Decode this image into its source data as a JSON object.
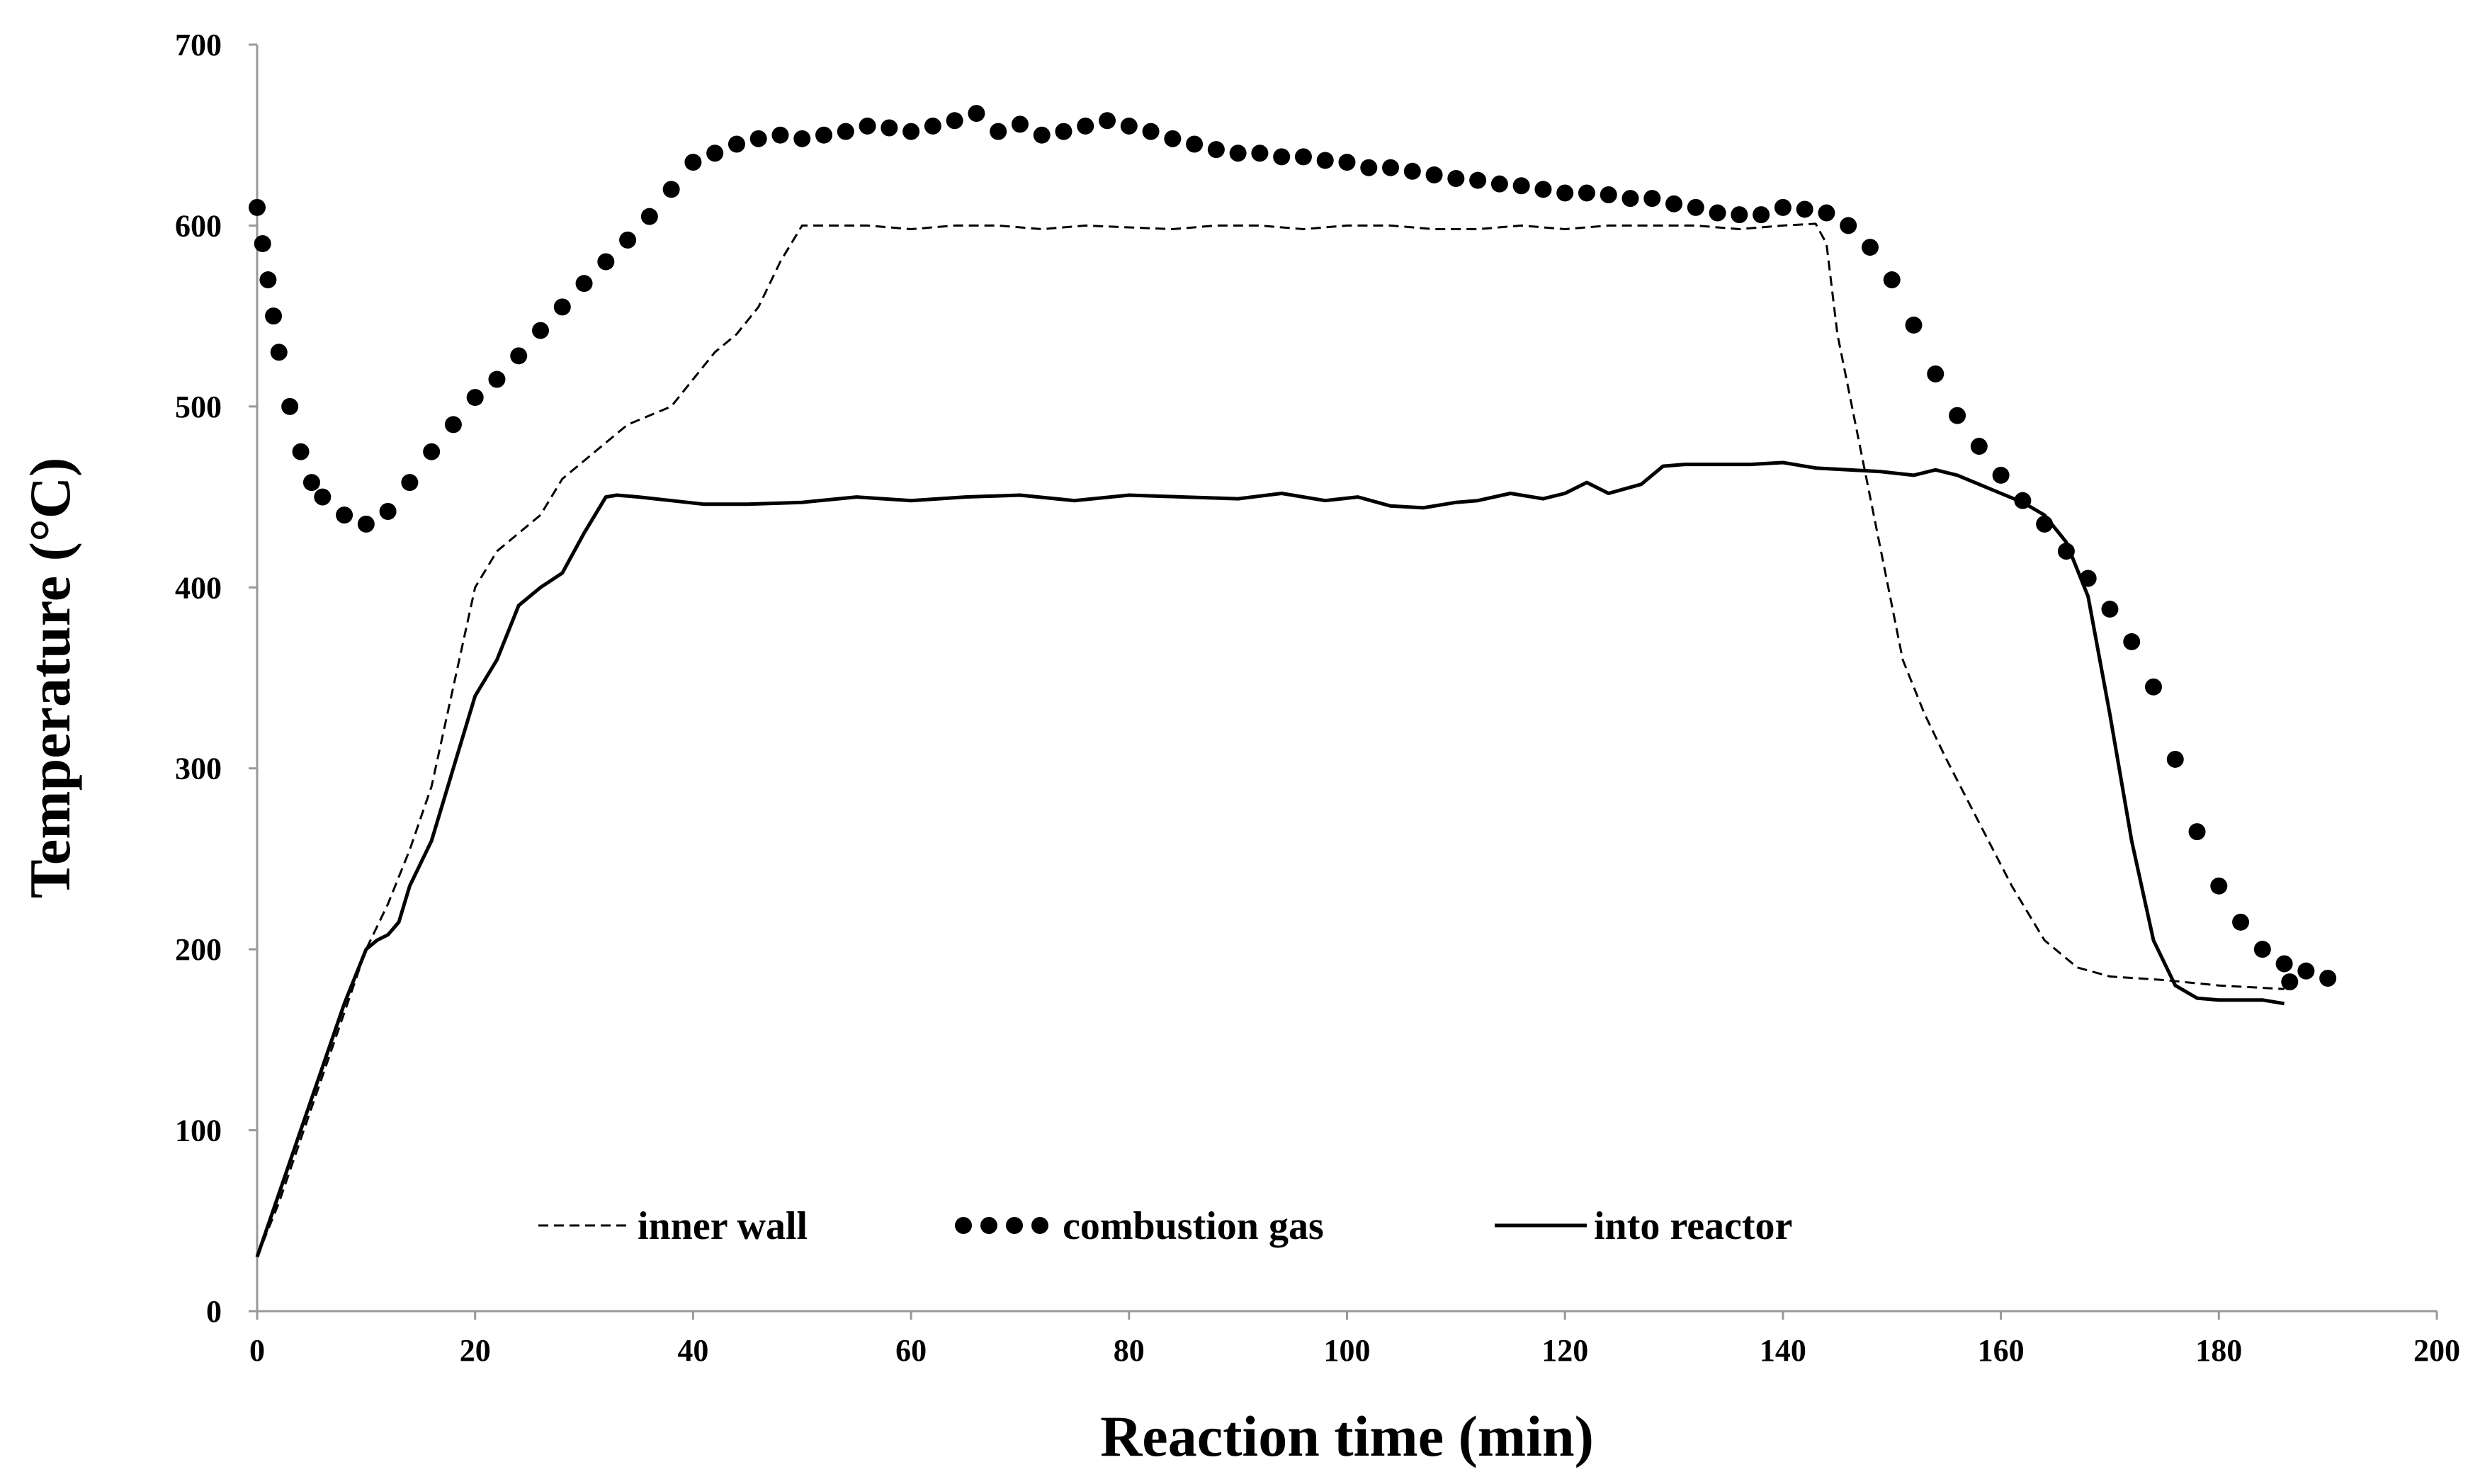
{
  "chart_data": {
    "type": "line",
    "title": "",
    "xlabel": "Reaction time (min)",
    "ylabel": "Temperature (°C)",
    "xlim": [
      0,
      200
    ],
    "ylim": [
      0,
      700
    ],
    "xticks": [
      0,
      20,
      40,
      60,
      80,
      100,
      120,
      140,
      160,
      180,
      200
    ],
    "yticks": [
      0,
      100,
      200,
      300,
      400,
      500,
      600,
      700
    ],
    "grid": false,
    "legend_position": "bottom-inside",
    "series": [
      {
        "name": "inner wall",
        "style": "dashed",
        "color": "#000000",
        "points": [
          [
            0,
            30
          ],
          [
            2,
            60
          ],
          [
            4,
            95
          ],
          [
            6,
            130
          ],
          [
            8,
            165
          ],
          [
            10,
            200
          ],
          [
            12,
            225
          ],
          [
            14,
            255
          ],
          [
            16,
            290
          ],
          [
            18,
            345
          ],
          [
            20,
            400
          ],
          [
            22,
            420
          ],
          [
            24,
            430
          ],
          [
            26,
            440
          ],
          [
            28,
            460
          ],
          [
            30,
            470
          ],
          [
            32,
            480
          ],
          [
            34,
            490
          ],
          [
            36,
            495
          ],
          [
            38,
            500
          ],
          [
            40,
            515
          ],
          [
            42,
            530
          ],
          [
            44,
            540
          ],
          [
            46,
            555
          ],
          [
            48,
            580
          ],
          [
            50,
            600
          ],
          [
            52,
            600
          ],
          [
            56,
            600
          ],
          [
            60,
            598
          ],
          [
            64,
            600
          ],
          [
            68,
            600
          ],
          [
            72,
            598
          ],
          [
            76,
            600
          ],
          [
            80,
            599
          ],
          [
            84,
            598
          ],
          [
            88,
            600
          ],
          [
            92,
            600
          ],
          [
            96,
            598
          ],
          [
            100,
            600
          ],
          [
            104,
            600
          ],
          [
            108,
            598
          ],
          [
            112,
            598
          ],
          [
            116,
            600
          ],
          [
            120,
            598
          ],
          [
            124,
            600
          ],
          [
            128,
            600
          ],
          [
            132,
            600
          ],
          [
            136,
            598
          ],
          [
            140,
            600
          ],
          [
            143,
            601
          ],
          [
            144,
            590
          ],
          [
            145,
            540
          ],
          [
            147,
            480
          ],
          [
            149,
            420
          ],
          [
            151,
            360
          ],
          [
            153,
            330
          ],
          [
            155,
            305
          ],
          [
            158,
            270
          ],
          [
            161,
            235
          ],
          [
            164,
            205
          ],
          [
            167,
            190
          ],
          [
            170,
            185
          ],
          [
            175,
            183
          ],
          [
            180,
            180
          ],
          [
            186,
            178
          ]
        ]
      },
      {
        "name": "combustion gas",
        "style": "dotted",
        "color": "#000000",
        "points": [
          [
            0,
            610
          ],
          [
            0.5,
            590
          ],
          [
            1,
            570
          ],
          [
            1.5,
            550
          ],
          [
            2,
            530
          ],
          [
            3,
            500
          ],
          [
            4,
            475
          ],
          [
            5,
            458
          ],
          [
            6,
            450
          ],
          [
            8,
            440
          ],
          [
            10,
            435
          ],
          [
            12,
            442
          ],
          [
            14,
            458
          ],
          [
            16,
            475
          ],
          [
            18,
            490
          ],
          [
            20,
            505
          ],
          [
            22,
            515
          ],
          [
            24,
            528
          ],
          [
            26,
            542
          ],
          [
            28,
            555
          ],
          [
            30,
            568
          ],
          [
            32,
            580
          ],
          [
            34,
            592
          ],
          [
            36,
            605
          ],
          [
            38,
            620
          ],
          [
            40,
            635
          ],
          [
            42,
            640
          ],
          [
            44,
            645
          ],
          [
            46,
            648
          ],
          [
            48,
            650
          ],
          [
            50,
            648
          ],
          [
            52,
            650
          ],
          [
            54,
            652
          ],
          [
            56,
            655
          ],
          [
            58,
            654
          ],
          [
            60,
            652
          ],
          [
            62,
            655
          ],
          [
            64,
            658
          ],
          [
            66,
            662
          ],
          [
            68,
            652
          ],
          [
            70,
            656
          ],
          [
            72,
            650
          ],
          [
            74,
            652
          ],
          [
            76,
            655
          ],
          [
            78,
            658
          ],
          [
            80,
            655
          ],
          [
            82,
            652
          ],
          [
            84,
            648
          ],
          [
            86,
            645
          ],
          [
            88,
            642
          ],
          [
            90,
            640
          ],
          [
            92,
            640
          ],
          [
            94,
            638
          ],
          [
            96,
            638
          ],
          [
            98,
            636
          ],
          [
            100,
            635
          ],
          [
            102,
            632
          ],
          [
            104,
            632
          ],
          [
            106,
            630
          ],
          [
            108,
            628
          ],
          [
            110,
            626
          ],
          [
            112,
            625
          ],
          [
            114,
            623
          ],
          [
            116,
            622
          ],
          [
            118,
            620
          ],
          [
            120,
            618
          ],
          [
            122,
            618
          ],
          [
            124,
            617
          ],
          [
            126,
            615
          ],
          [
            128,
            615
          ],
          [
            130,
            612
          ],
          [
            132,
            610
          ],
          [
            134,
            607
          ],
          [
            136,
            606
          ],
          [
            138,
            606
          ],
          [
            140,
            610
          ],
          [
            142,
            609
          ],
          [
            144,
            607
          ],
          [
            146,
            600
          ],
          [
            148,
            588
          ],
          [
            150,
            570
          ],
          [
            152,
            545
          ],
          [
            154,
            518
          ],
          [
            156,
            495
          ],
          [
            158,
            478
          ],
          [
            160,
            462
          ],
          [
            162,
            448
          ],
          [
            164,
            435
          ],
          [
            166,
            420
          ],
          [
            168,
            405
          ],
          [
            170,
            388
          ],
          [
            172,
            370
          ],
          [
            174,
            345
          ],
          [
            176,
            305
          ],
          [
            178,
            265
          ],
          [
            180,
            235
          ],
          [
            182,
            215
          ],
          [
            184,
            200
          ],
          [
            186,
            192
          ],
          [
            188,
            188
          ],
          [
            190,
            184
          ],
          [
            186.5,
            182
          ]
        ]
      },
      {
        "name": "into reactor",
        "style": "solid",
        "color": "#000000",
        "points": [
          [
            0,
            30
          ],
          [
            2,
            65
          ],
          [
            4,
            100
          ],
          [
            6,
            135
          ],
          [
            8,
            170
          ],
          [
            10,
            200
          ],
          [
            11,
            205
          ],
          [
            12,
            208
          ],
          [
            13,
            215
          ],
          [
            14,
            235
          ],
          [
            16,
            260
          ],
          [
            18,
            300
          ],
          [
            20,
            340
          ],
          [
            22,
            360
          ],
          [
            24,
            390
          ],
          [
            26,
            400
          ],
          [
            28,
            408
          ],
          [
            30,
            430
          ],
          [
            32,
            450
          ],
          [
            33,
            451
          ],
          [
            35,
            450
          ],
          [
            38,
            448
          ],
          [
            41,
            446
          ],
          [
            45,
            446
          ],
          [
            50,
            447
          ],
          [
            55,
            450
          ],
          [
            60,
            448
          ],
          [
            65,
            450
          ],
          [
            70,
            451
          ],
          [
            75,
            448
          ],
          [
            80,
            451
          ],
          [
            85,
            450
          ],
          [
            90,
            449
          ],
          [
            94,
            452
          ],
          [
            98,
            448
          ],
          [
            101,
            450
          ],
          [
            104,
            445
          ],
          [
            107,
            444
          ],
          [
            110,
            447
          ],
          [
            112,
            448
          ],
          [
            115,
            452
          ],
          [
            118,
            449
          ],
          [
            120,
            452
          ],
          [
            122,
            458
          ],
          [
            124,
            452
          ],
          [
            127,
            457
          ],
          [
            129,
            467
          ],
          [
            131,
            468
          ],
          [
            134,
            468
          ],
          [
            137,
            468
          ],
          [
            140,
            469
          ],
          [
            143,
            466
          ],
          [
            146,
            465
          ],
          [
            149,
            464
          ],
          [
            152,
            462
          ],
          [
            154,
            465
          ],
          [
            156,
            462
          ],
          [
            158,
            457
          ],
          [
            160,
            452
          ],
          [
            162,
            447
          ],
          [
            164,
            440
          ],
          [
            166,
            425
          ],
          [
            168,
            395
          ],
          [
            170,
            330
          ],
          [
            172,
            260
          ],
          [
            174,
            205
          ],
          [
            176,
            180
          ],
          [
            178,
            173
          ],
          [
            180,
            172
          ],
          [
            184,
            172
          ],
          [
            186,
            170
          ]
        ]
      }
    ]
  }
}
